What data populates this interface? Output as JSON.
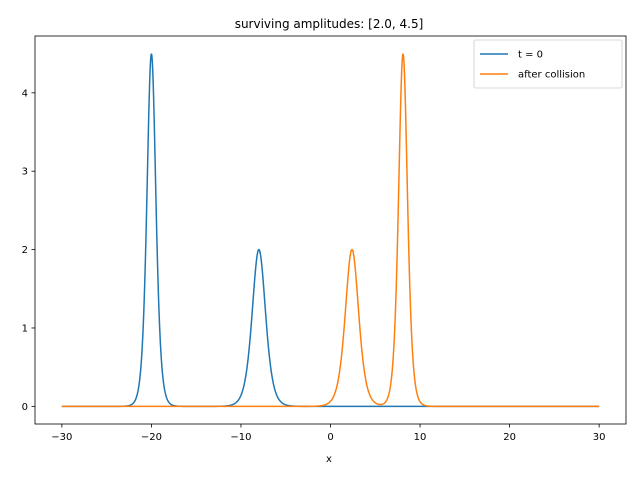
{
  "chart_data": {
    "type": "line",
    "title": "surviving amplitudes: [2.0, 4.5]",
    "xlabel": "x",
    "ylabel": "",
    "xlim": [
      -33,
      33
    ],
    "ylim": [
      -0.225,
      4.725
    ],
    "x_range": [
      -30,
      30
    ],
    "x_ticks": [
      -30,
      -20,
      -10,
      0,
      10,
      20,
      30
    ],
    "x_tick_labels": [
      "−30",
      "−20",
      "−10",
      "0",
      "10",
      "20",
      "30"
    ],
    "y_ticks": [
      0,
      1,
      2,
      3,
      4
    ],
    "y_tick_labels": [
      "0",
      "1",
      "2",
      "3",
      "4"
    ],
    "grid": false,
    "legend_position": "top-right",
    "series": [
      {
        "name": "t = 0",
        "color": "#1f77b4",
        "components": [
          {
            "amplitude": 4.5,
            "center": -20
          },
          {
            "amplitude": 2.0,
            "center": -8
          }
        ]
      },
      {
        "name": "after collision",
        "color": "#ff7f0e",
        "components": [
          {
            "amplitude": 2.0,
            "center": 2.4
          },
          {
            "amplitude": 4.5,
            "center": 8.1
          }
        ]
      }
    ]
  }
}
